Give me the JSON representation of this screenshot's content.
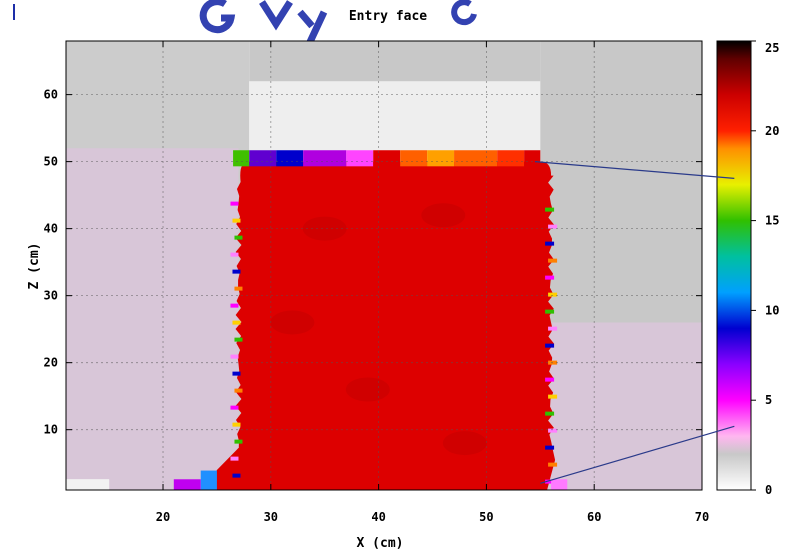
{
  "chart_data": {
    "type": "heatmap",
    "title": "Entry face",
    "xlabel": "X (cm)",
    "ylabel": "Z (cm)",
    "xlim": [
      11,
      70
    ],
    "ylim": [
      1,
      68
    ],
    "xticks": [
      20,
      30,
      40,
      50,
      60,
      70
    ],
    "yticks": [
      10,
      20,
      30,
      40,
      50,
      60
    ],
    "grid": true,
    "colorbar": {
      "range": [
        0,
        25
      ],
      "ticks": [
        0,
        5,
        10,
        15,
        20,
        25
      ],
      "stops": [
        {
          "value": 0,
          "color": "#ffffff"
        },
        {
          "value": 2,
          "color": "#c8c8c8"
        },
        {
          "value": 3,
          "color": "#ffb6f0"
        },
        {
          "value": 5,
          "color": "#ff00ff"
        },
        {
          "value": 7,
          "color": "#8a00ff"
        },
        {
          "value": 9,
          "color": "#0000d0"
        },
        {
          "value": 11,
          "color": "#00a0ff"
        },
        {
          "value": 13,
          "color": "#00c0a0"
        },
        {
          "value": 15,
          "color": "#30c000"
        },
        {
          "value": 17,
          "color": "#e8f000"
        },
        {
          "value": 19,
          "color": "#ff9000"
        },
        {
          "value": 20,
          "color": "#ff2000"
        },
        {
          "value": 22,
          "color": "#cc0000"
        },
        {
          "value": 24,
          "color": "#600000"
        },
        {
          "value": 25,
          "color": "#000000"
        }
      ]
    },
    "background_regions": [
      {
        "x": [
          11,
          28
        ],
        "z": [
          1,
          68
        ],
        "color": "#cccccc"
      },
      {
        "x": [
          11,
          27
        ],
        "z": [
          1,
          52
        ],
        "color": "#d8c6d8"
      },
      {
        "x": [
          28,
          55
        ],
        "z": [
          50,
          68
        ],
        "color": "#eeeeee"
      },
      {
        "x": [
          28,
          55
        ],
        "z": [
          62,
          68
        ],
        "color": "#c8c8c8"
      },
      {
        "x": [
          55,
          70
        ],
        "z": [
          1,
          68
        ],
        "color": "#c8c8c8"
      },
      {
        "x": [
          55,
          70
        ],
        "z": [
          1,
          26
        ],
        "color": "#d8c6d8"
      },
      {
        "x": [
          11,
          15
        ],
        "z": [
          1,
          2.6
        ],
        "color": "#f2f2f2"
      }
    ],
    "field_region": {
      "x": [
        27,
        56
      ],
      "z": [
        1,
        50
      ],
      "value": 21,
      "color": "#dd0000"
    },
    "top_edge_segments": [
      {
        "x": [
          26.5,
          28
        ],
        "value": 16,
        "color": "#40c000"
      },
      {
        "x": [
          28,
          30.5
        ],
        "value": 7,
        "color": "#6000d0"
      },
      {
        "x": [
          30.5,
          33
        ],
        "value": 9,
        "color": "#0000cc"
      },
      {
        "x": [
          33,
          37
        ],
        "value": 6,
        "color": "#b000e0"
      },
      {
        "x": [
          37,
          39.5
        ],
        "value": 5,
        "color": "#ff44ff"
      },
      {
        "x": [
          39.5,
          42
        ],
        "value": 21,
        "color": "#dd0000"
      },
      {
        "x": [
          42,
          44.5
        ],
        "value": 19.5,
        "color": "#ff6000"
      },
      {
        "x": [
          44.5,
          47
        ],
        "value": 18.5,
        "color": "#ffa000"
      },
      {
        "x": [
          47,
          51
        ],
        "value": 19.5,
        "color": "#ff6000"
      },
      {
        "x": [
          51,
          53.5
        ],
        "value": 20,
        "color": "#ff3000"
      },
      {
        "x": [
          53.5,
          55
        ],
        "value": 21,
        "color": "#dd0000"
      }
    ],
    "bottom_edge_segments": [
      {
        "x": [
          11,
          15
        ],
        "value": 0.5,
        "color": "#f2f2f2"
      },
      {
        "x": [
          21,
          23.5
        ],
        "value": 6,
        "color": "#c000f0"
      },
      {
        "x": [
          23.5,
          25
        ],
        "value": 11,
        "color": "#2090ff"
      },
      {
        "x": [
          56,
          57.5
        ],
        "value": 4,
        "color": "#ff7aff"
      }
    ],
    "annotation_lines": [
      {
        "from": [
          54.5,
          50
        ],
        "to": [
          73,
          47.5
        ]
      },
      {
        "from": [
          55,
          2
        ],
        "to": [
          73,
          10.5
        ]
      }
    ]
  }
}
